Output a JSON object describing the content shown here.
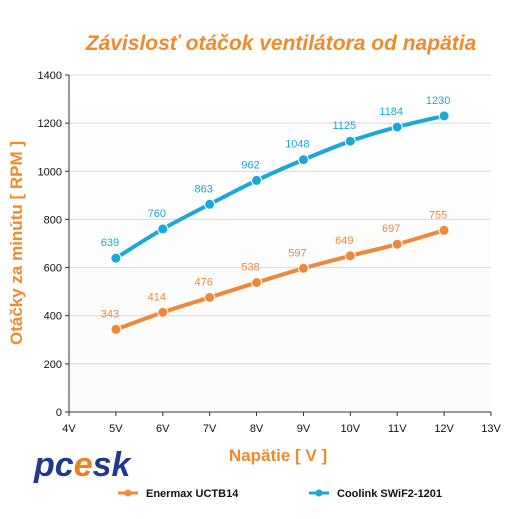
{
  "chart_data": {
    "type": "line",
    "title": "Závislosť otáčok ventilátora od napätia",
    "xlabel": "Napätie [ V ]",
    "ylabel": "Otáčky za minútu [ RPM ]",
    "categories": [
      "4V",
      "5V",
      "6V",
      "7V",
      "8V",
      "9V",
      "10V",
      "11V",
      "12V",
      "13V"
    ],
    "ylim": [
      0,
      1400
    ],
    "yticks": [
      0,
      200,
      400,
      600,
      800,
      1000,
      1200,
      1400
    ],
    "grid": true,
    "legend_position": "bottom",
    "series": [
      {
        "name": "Enermax UCTB14",
        "color": "#F0883A",
        "x": [
          "5V",
          "6V",
          "7V",
          "8V",
          "9V",
          "10V",
          "11V",
          "12V"
        ],
        "values": [
          343,
          414,
          476,
          538,
          597,
          649,
          697,
          755
        ]
      },
      {
        "name": "Coolink SWiF2-1201",
        "color": "#1BA8D8",
        "x": [
          "5V",
          "6V",
          "7V",
          "8V",
          "9V",
          "10V",
          "11V",
          "12V"
        ],
        "values": [
          639,
          760,
          863,
          962,
          1048,
          1125,
          1184,
          1230
        ]
      }
    ],
    "title_color": "#F08A2C",
    "axis_label_color": "#F08A2C"
  },
  "logo": {
    "text": "pcesk",
    "color": "#1F3A8C",
    "accent_color": "#F07E1E"
  }
}
